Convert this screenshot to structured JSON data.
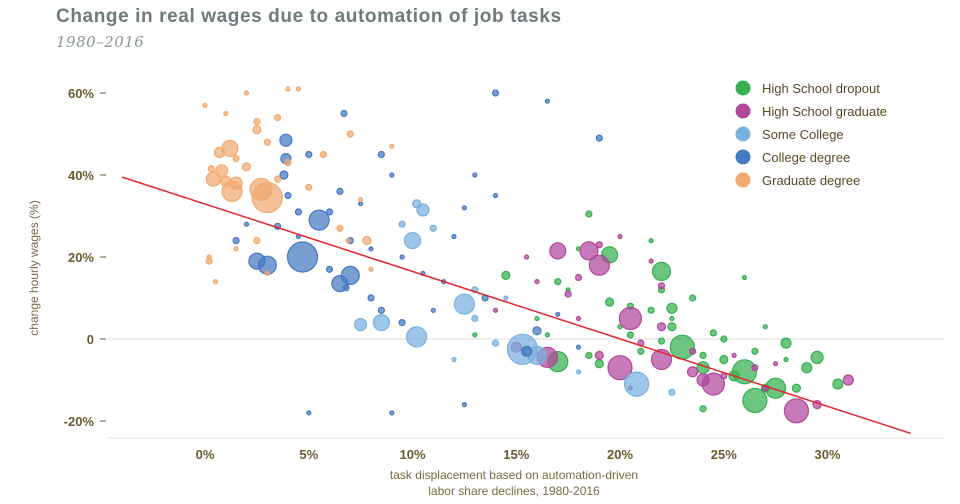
{
  "header": {
    "title": "Change in real wages due to automation of job tasks",
    "subtitle": "1980–2016"
  },
  "chart_data": {
    "type": "scatter",
    "xlabel": "task displacement based on automation-driven labor share declines, 1980-2016",
    "ylabel": "change hourly wages (%)",
    "xlim": [
      -5,
      35
    ],
    "ylim": [
      -25,
      62
    ],
    "x_ticks": [
      0,
      5,
      10,
      15,
      20,
      25,
      30
    ],
    "x_tick_labels": [
      "0%",
      "5%",
      "10%",
      "15%",
      "20%",
      "25%",
      "30%"
    ],
    "y_ticks": [
      60,
      40,
      20,
      0,
      -20
    ],
    "y_tick_labels": [
      "60%",
      "40%",
      "20%",
      "0",
      "-20%"
    ],
    "grid": false,
    "legend_position": "top-right",
    "trend_line": {
      "color": "#e0262b",
      "from": [
        -4,
        39.5
      ],
      "to": [
        34,
        -23
      ]
    },
    "series": [
      {
        "name": "High School dropout",
        "color": "#35b04e",
        "points": [
          [
            14.5,
            15.5,
            4
          ],
          [
            17,
            14,
            3
          ],
          [
            18.5,
            30.5,
            3
          ],
          [
            19.5,
            20.5,
            8
          ],
          [
            19.5,
            9,
            4
          ],
          [
            20.5,
            8,
            3
          ],
          [
            21.5,
            7,
            3
          ],
          [
            22,
            16.5,
            9
          ],
          [
            22.5,
            7.5,
            5
          ],
          [
            22,
            12,
            3
          ],
          [
            22.5,
            3,
            4
          ],
          [
            23,
            -2,
            12
          ],
          [
            23.5,
            10,
            3
          ],
          [
            24,
            -4,
            3
          ],
          [
            24,
            -7,
            6
          ],
          [
            25,
            -5,
            4
          ],
          [
            25.5,
            -9,
            5
          ],
          [
            26,
            -8,
            12
          ],
          [
            26.5,
            -15,
            12
          ],
          [
            27,
            -12,
            4
          ],
          [
            27.5,
            -12,
            10
          ],
          [
            28,
            -1,
            5
          ],
          [
            28.5,
            -12,
            4
          ],
          [
            29,
            -7,
            5
          ],
          [
            29.5,
            -4.5,
            6
          ],
          [
            30.5,
            -11,
            5
          ],
          [
            19,
            -6,
            4
          ],
          [
            17,
            -5.5,
            10
          ],
          [
            15.5,
            -3,
            4
          ],
          [
            18.5,
            -4,
            3
          ],
          [
            20.5,
            1,
            3
          ],
          [
            21,
            -3,
            3
          ],
          [
            22,
            -0.5,
            3
          ],
          [
            24.5,
            1.5,
            3
          ],
          [
            25,
            0,
            3
          ],
          [
            13,
            1,
            2
          ],
          [
            16.5,
            1,
            2
          ],
          [
            26.5,
            -3,
            3
          ],
          [
            28,
            -5,
            2
          ],
          [
            27,
            3,
            2
          ],
          [
            24,
            -17,
            3
          ],
          [
            22.5,
            5,
            2
          ],
          [
            20,
            3,
            2
          ],
          [
            17.5,
            12,
            2
          ],
          [
            16,
            5,
            2
          ],
          [
            18,
            22,
            2
          ],
          [
            21.5,
            24,
            2
          ],
          [
            26,
            15,
            2
          ]
        ]
      },
      {
        "name": "High School graduate",
        "color": "#b0479b",
        "points": [
          [
            17,
            21.5,
            8
          ],
          [
            18.5,
            21.5,
            9
          ],
          [
            19,
            18,
            10
          ],
          [
            20.5,
            5,
            11
          ],
          [
            22,
            -5,
            10
          ],
          [
            20,
            -7,
            12
          ],
          [
            24,
            -10,
            6
          ],
          [
            24.5,
            -11,
            11
          ],
          [
            23.5,
            -8,
            5
          ],
          [
            28.5,
            -17.5,
            12
          ],
          [
            29.5,
            -16,
            4
          ],
          [
            31,
            -10,
            5
          ],
          [
            16.5,
            -4.5,
            10
          ],
          [
            15,
            -2,
            5
          ],
          [
            19,
            -4,
            4
          ],
          [
            21,
            -1,
            3
          ],
          [
            22,
            3,
            4
          ],
          [
            23.5,
            -3,
            3
          ],
          [
            25,
            -9,
            3
          ],
          [
            27,
            -12,
            3
          ],
          [
            18,
            15,
            3
          ],
          [
            17.5,
            11,
            3
          ],
          [
            16,
            14,
            2
          ],
          [
            19,
            23,
            3
          ],
          [
            20,
            25,
            2
          ],
          [
            22,
            13,
            3
          ],
          [
            21.5,
            19,
            2
          ],
          [
            26.5,
            -7,
            3
          ],
          [
            15.5,
            20,
            2
          ],
          [
            18,
            5,
            2
          ],
          [
            25.5,
            -4,
            2
          ],
          [
            27.5,
            -6,
            2
          ],
          [
            20.5,
            -12,
            2
          ],
          [
            14,
            7,
            2
          ]
        ]
      },
      {
        "name": "Some College",
        "color": "#79b0e0",
        "points": [
          [
            10,
            24,
            8
          ],
          [
            10.2,
            33,
            4
          ],
          [
            10.5,
            31.5,
            6
          ],
          [
            10.2,
            0.5,
            10
          ],
          [
            8.5,
            4,
            8
          ],
          [
            7.5,
            3.5,
            6
          ],
          [
            12.5,
            8.5,
            10
          ],
          [
            15.3,
            -2.5,
            15
          ],
          [
            15.5,
            -3,
            4
          ],
          [
            16,
            -4,
            9
          ],
          [
            20.8,
            -11,
            12
          ],
          [
            22.5,
            -13,
            3
          ],
          [
            13,
            5,
            3
          ],
          [
            14,
            -1,
            3
          ],
          [
            9.5,
            28,
            3
          ],
          [
            11,
            27,
            3
          ],
          [
            13,
            12,
            3
          ],
          [
            14.5,
            10,
            2
          ],
          [
            12,
            -5,
            2
          ],
          [
            18,
            -8,
            2
          ]
        ]
      },
      {
        "name": "College degree",
        "color": "#4579c0",
        "points": [
          [
            2.5,
            19,
            8
          ],
          [
            3,
            18,
            9
          ],
          [
            4.7,
            20,
            15
          ],
          [
            5.5,
            29,
            10
          ],
          [
            7,
            15.5,
            9
          ],
          [
            6.5,
            13.5,
            8
          ],
          [
            6.8,
            12.5,
            3
          ],
          [
            3.9,
            48.5,
            6
          ],
          [
            3.9,
            44,
            5
          ],
          [
            3.8,
            40,
            4
          ],
          [
            5,
            45,
            3
          ],
          [
            4,
            35,
            3
          ],
          [
            6.5,
            36,
            3
          ],
          [
            6.7,
            55,
            3
          ],
          [
            8.5,
            45,
            3
          ],
          [
            9,
            40,
            2
          ],
          [
            4.5,
            31,
            3
          ],
          [
            3.5,
            27.5,
            3
          ],
          [
            2,
            28,
            2
          ],
          [
            6,
            17,
            3
          ],
          [
            8,
            10,
            3
          ],
          [
            8.5,
            7,
            3
          ],
          [
            9.5,
            4,
            3
          ],
          [
            11,
            7,
            2
          ],
          [
            12.5,
            32,
            2
          ],
          [
            13,
            40,
            2
          ],
          [
            14,
            35,
            2
          ],
          [
            12,
            25,
            2
          ],
          [
            13.5,
            10,
            3
          ],
          [
            16,
            2,
            4
          ],
          [
            15.5,
            -3,
            5
          ],
          [
            14,
            60,
            3
          ],
          [
            16.5,
            58,
            2
          ],
          [
            19,
            49,
            3
          ],
          [
            7.5,
            33,
            2
          ],
          [
            9.5,
            20,
            2
          ],
          [
            10.5,
            16,
            2
          ],
          [
            11.5,
            14,
            2
          ],
          [
            1.5,
            24,
            3
          ],
          [
            4.5,
            25,
            2
          ],
          [
            7,
            24,
            3
          ],
          [
            8,
            22,
            2
          ],
          [
            6,
            31,
            3
          ],
          [
            17,
            6,
            2
          ],
          [
            18,
            -2,
            2
          ],
          [
            5,
            -18,
            2
          ],
          [
            9,
            -18,
            2
          ],
          [
            12.5,
            -16,
            2
          ]
        ]
      },
      {
        "name": "Graduate degree",
        "color": "#f0a970",
        "points": [
          [
            1.2,
            46.5,
            8
          ],
          [
            0.7,
            45.5,
            5
          ],
          [
            0.8,
            41,
            6
          ],
          [
            0.4,
            39,
            7
          ],
          [
            1,
            38.5,
            5
          ],
          [
            1.5,
            38,
            6
          ],
          [
            1.3,
            36,
            10
          ],
          [
            2.7,
            36.5,
            11
          ],
          [
            3,
            34.5,
            15
          ],
          [
            0.3,
            41.5,
            3
          ],
          [
            1.5,
            44,
            3
          ],
          [
            2,
            42,
            4
          ],
          [
            2.5,
            51,
            4
          ],
          [
            2.5,
            53,
            3
          ],
          [
            3.5,
            54,
            3
          ],
          [
            5.7,
            45,
            3
          ],
          [
            3,
            48,
            3
          ],
          [
            3.5,
            39,
            3
          ],
          [
            4,
            43,
            3
          ],
          [
            5,
            37,
            3
          ],
          [
            6.5,
            27,
            3
          ],
          [
            6.9,
            24,
            2
          ],
          [
            7.5,
            34,
            2
          ],
          [
            7.8,
            24,
            4
          ],
          [
            9,
            47,
            2
          ],
          [
            7,
            50,
            3
          ],
          [
            2.5,
            24,
            3
          ],
          [
            1.5,
            22,
            2
          ],
          [
            0.2,
            19,
            3
          ],
          [
            0.2,
            20,
            2
          ],
          [
            2,
            60,
            2
          ],
          [
            4,
            61,
            2
          ],
          [
            4.5,
            61,
            2
          ],
          [
            0,
            57,
            2
          ],
          [
            1,
            55,
            2
          ],
          [
            3,
            16,
            2
          ],
          [
            0.5,
            14,
            2
          ],
          [
            8,
            17,
            2
          ]
        ]
      }
    ]
  }
}
